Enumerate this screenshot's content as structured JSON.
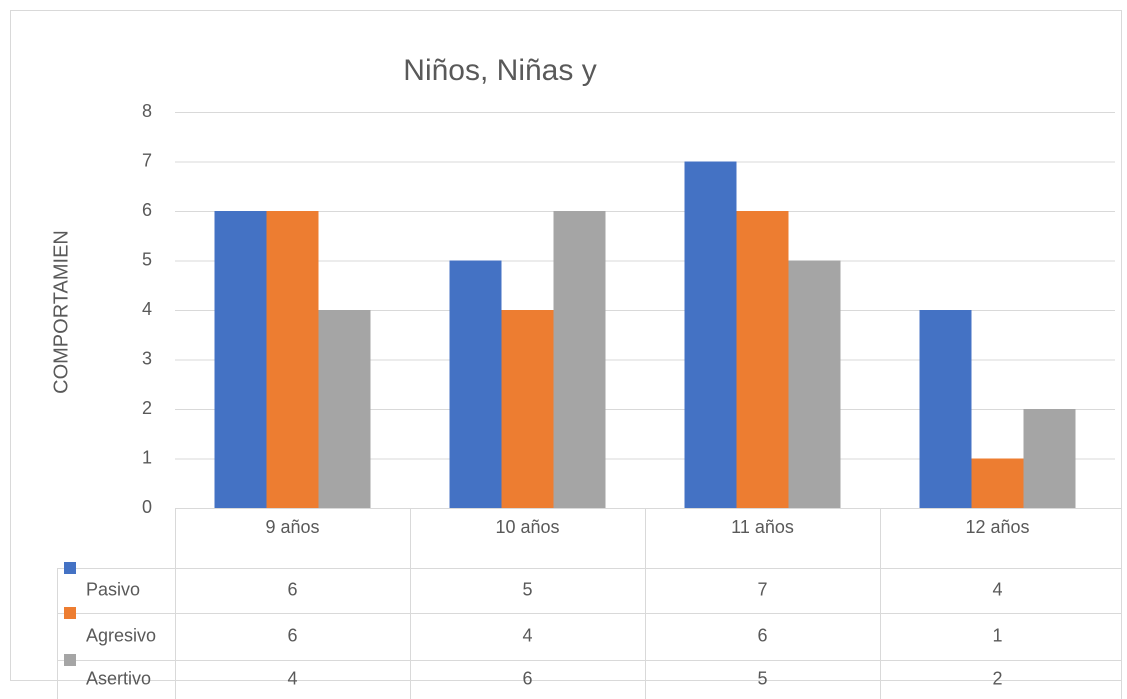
{
  "chart_data": {
    "type": "bar",
    "title": "Niños, Niñas y",
    "y_label": "COMPORTAMIEN",
    "categories": [
      "9 años",
      "10 años",
      "11 años",
      "12 años"
    ],
    "series": [
      {
        "name": "Pasivo",
        "color": "#4472c4",
        "values": [
          6,
          5,
          7,
          4
        ]
      },
      {
        "name": "Agresivo",
        "color": "#ed7d31",
        "values": [
          6,
          4,
          6,
          1
        ]
      },
      {
        "name": "Asertivo",
        "color": "#a5a5a5",
        "values": [
          4,
          6,
          5,
          2
        ]
      }
    ],
    "ylim": [
      0,
      8
    ],
    "yticks": [
      0,
      1,
      2,
      3,
      4,
      5,
      6,
      7,
      8
    ],
    "grid": true,
    "data_table": true
  }
}
